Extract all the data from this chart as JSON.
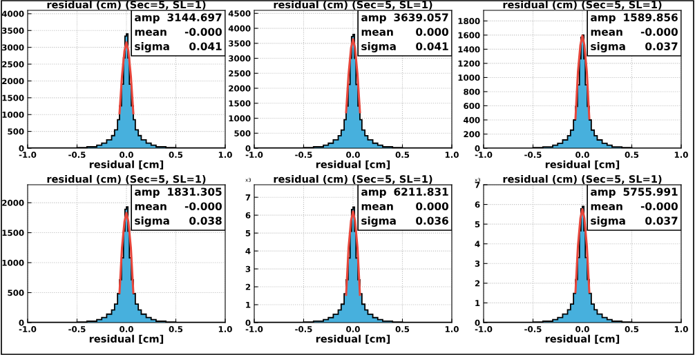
{
  "chart_data": [
    {
      "type": "histogram",
      "title": "residual (cm) (Sec=5, SL=1)",
      "xlabel": "residual [cm]",
      "bins": [
        -1,
        -0.5,
        -0.4,
        -0.3,
        -0.25,
        -0.2,
        -0.15,
        -0.12,
        -0.09,
        -0.07,
        -0.05,
        -0.03,
        -0.015,
        0,
        0.015,
        0.03,
        0.05,
        0.07,
        0.09,
        0.12,
        0.15,
        0.2,
        0.25,
        0.3,
        0.4,
        0.5,
        1
      ],
      "series": [
        {
          "type": "histogram",
          "color": "#47b0dd",
          "values": [
            5,
            17,
            41,
            88,
            150,
            248,
            374,
            544,
            850,
            1258,
            1904,
            2686,
            3332,
            3400,
            2686,
            1904,
            1258,
            850,
            544,
            374,
            248,
            150,
            88,
            41,
            17,
            5
          ]
        },
        {
          "type": "line",
          "color": "#e8473c",
          "x": [
            -0.07,
            -0.045,
            -0.02,
            0,
            0.02,
            0.045,
            0.07
          ],
          "values": [
            1040,
            2140,
            2890,
            3145,
            2890,
            2140,
            1040
          ]
        }
      ],
      "xlim": [
        -1,
        1
      ],
      "xticks": [
        {
          "value": -1,
          "label": "-1.0"
        },
        {
          "value": -0.5,
          "label": "-0.5"
        },
        {
          "value": 0,
          "label": "0.0"
        },
        {
          "value": 0.5,
          "label": "0.5"
        },
        {
          "value": 1,
          "label": "1.0"
        }
      ],
      "ylim": [
        0,
        4100
      ],
      "yticks": [
        0,
        500,
        1000,
        1500,
        2000,
        2500,
        3000,
        3500,
        4000
      ],
      "grid": true,
      "annotations": [
        "amp",
        "3144.697",
        "mean",
        "-0.000",
        "sigma",
        "0.041"
      ]
    },
    {
      "type": "histogram",
      "title": "residual (cm) (Sec=5, SL=1)",
      "xlabel": "residual [cm]",
      "bins": [
        -1,
        -0.5,
        -0.4,
        -0.3,
        -0.25,
        -0.2,
        -0.15,
        -0.12,
        -0.09,
        -0.07,
        -0.05,
        -0.03,
        -0.015,
        0,
        0.015,
        0.03,
        0.05,
        0.07,
        0.09,
        0.12,
        0.15,
        0.2,
        0.25,
        0.3,
        0.4,
        0.5,
        1
      ],
      "series": [
        {
          "type": "histogram",
          "color": "#47b0dd",
          "values": [
            6,
            19,
            46,
            99,
            167,
            277,
            418,
            608,
            950,
            1406,
            2128,
            3002,
            3724,
            3800,
            3002,
            2128,
            1406,
            950,
            608,
            418,
            277,
            167,
            99,
            46,
            19,
            6
          ]
        },
        {
          "type": "line",
          "color": "#e8473c",
          "x": [
            -0.07,
            -0.045,
            -0.02,
            0,
            0.02,
            0.045,
            0.07
          ],
          "values": [
            1200,
            2470,
            3350,
            3639,
            3350,
            2470,
            1200
          ]
        }
      ],
      "xlim": [
        -1,
        1
      ],
      "xticks": [
        {
          "value": -1,
          "label": "-1.0"
        },
        {
          "value": -0.5,
          "label": "-0.5"
        },
        {
          "value": 0,
          "label": "0.0"
        },
        {
          "value": 0.5,
          "label": "0.5"
        },
        {
          "value": 1,
          "label": "1.0"
        }
      ],
      "ylim": [
        0,
        4600
      ],
      "yticks": [
        0,
        500,
        1000,
        1500,
        2000,
        2500,
        3000,
        3500,
        4000,
        4500
      ],
      "grid": true,
      "annotations": [
        "amp",
        "3639.057",
        "mean",
        "0.000",
        "sigma",
        "0.041"
      ]
    },
    {
      "type": "histogram",
      "title": "residual (cm) (Sec=5, SL=1)",
      "xlabel": "residual [cm]",
      "bins": [
        -1,
        -0.5,
        -0.4,
        -0.3,
        -0.25,
        -0.2,
        -0.15,
        -0.12,
        -0.09,
        -0.07,
        -0.05,
        -0.03,
        -0.015,
        0,
        0.015,
        0.03,
        0.05,
        0.07,
        0.09,
        0.12,
        0.15,
        0.2,
        0.25,
        0.3,
        0.4,
        0.5,
        1
      ],
      "series": [
        {
          "type": "histogram",
          "color": "#47b0dd",
          "values": [
            2,
            8,
            19,
            42,
            70,
            117,
            176,
            256,
            400,
            592,
            896,
            1264,
            1568,
            1600,
            1264,
            896,
            592,
            400,
            256,
            176,
            117,
            70,
            42,
            19,
            8,
            2
          ]
        },
        {
          "type": "line",
          "color": "#e8473c",
          "x": [
            -0.07,
            -0.045,
            -0.02,
            0,
            0.02,
            0.045,
            0.07
          ],
          "values": [
            420,
            1080,
            1460,
            1590,
            1460,
            1080,
            420
          ]
        }
      ],
      "xlim": [
        -1,
        1
      ],
      "xticks": [
        {
          "value": -1,
          "label": "-1.0"
        },
        {
          "value": -0.5,
          "label": "-0.5"
        },
        {
          "value": 0,
          "label": "0.0"
        },
        {
          "value": 0.5,
          "label": "0.5"
        },
        {
          "value": 1,
          "label": "1.0"
        }
      ],
      "ylim": [
        0,
        1950
      ],
      "yticks": [
        0,
        200,
        400,
        600,
        800,
        1000,
        1200,
        1400,
        1600,
        1800
      ],
      "grid": true,
      "annotations": [
        "amp",
        "1589.856",
        "mean",
        "-0.000",
        "sigma",
        "0.037"
      ]
    },
    {
      "type": "histogram",
      "title": "residual (cm) (Sec=5, SL=1)",
      "xlabel": "residual [cm]",
      "bins": [
        -1,
        -0.5,
        -0.4,
        -0.3,
        -0.25,
        -0.2,
        -0.15,
        -0.12,
        -0.09,
        -0.07,
        -0.05,
        -0.03,
        -0.015,
        0,
        0.015,
        0.03,
        0.05,
        0.07,
        0.09,
        0.12,
        0.15,
        0.2,
        0.25,
        0.3,
        0.4,
        0.5,
        1
      ],
      "series": [
        {
          "type": "histogram",
          "color": "#47b0dd",
          "values": [
            3,
            10,
            23,
            50,
            85,
            141,
            212,
            309,
            483,
            714,
            1081,
            1525,
            1891,
            1930,
            1525,
            1081,
            714,
            483,
            309,
            212,
            141,
            85,
            50,
            23,
            10,
            3
          ]
        },
        {
          "type": "line",
          "color": "#e8473c",
          "x": [
            -0.07,
            -0.045,
            -0.02,
            0,
            0.02,
            0.045,
            0.07
          ],
          "values": [
            500,
            1250,
            1680,
            1831,
            1680,
            1250,
            500
          ]
        }
      ],
      "xlim": [
        -1,
        1
      ],
      "xticks": [
        {
          "value": -1,
          "label": "-1.0"
        },
        {
          "value": -0.5,
          "label": "-0.5"
        },
        {
          "value": 0,
          "label": "0.0"
        },
        {
          "value": 0.5,
          "label": "0.5"
        },
        {
          "value": 1,
          "label": "1.0"
        }
      ],
      "ylim": [
        0,
        2300
      ],
      "yticks": [
        0,
        500,
        1000,
        1500,
        2000
      ],
      "grid": true,
      "annotations": [
        "amp",
        "1831.305",
        "mean",
        "-0.000",
        "sigma",
        "0.038"
      ]
    },
    {
      "type": "histogram",
      "title": "residual (cm) (Sec=5, SL=1)",
      "xlabel": "residual [cm]",
      "ylabel": "x3",
      "bins": [
        -1,
        -0.5,
        -0.4,
        -0.3,
        -0.25,
        -0.2,
        -0.15,
        -0.12,
        -0.09,
        -0.07,
        -0.05,
        -0.03,
        -0.015,
        0,
        0.015,
        0.03,
        0.05,
        0.07,
        0.09,
        0.12,
        0.15,
        0.2,
        0.25,
        0.3,
        0.4,
        0.5,
        1
      ],
      "series": [
        {
          "type": "histogram",
          "color": "#47b0dd",
          "values": [
            0.01,
            0.03,
            0.08,
            0.17,
            0.28,
            0.47,
            0.71,
            1.03,
            1.61,
            2.39,
            3.61,
            5.1,
            6.32,
            6.45,
            5.1,
            3.61,
            2.39,
            1.61,
            1.03,
            0.71,
            0.47,
            0.28,
            0.17,
            0.08,
            0.03,
            0.01
          ]
        },
        {
          "type": "line",
          "color": "#e8473c",
          "x": [
            -0.07,
            -0.045,
            -0.02,
            0,
            0.02,
            0.045,
            0.07
          ],
          "values": [
            1.55,
            4.2,
            5.7,
            6.21,
            5.7,
            4.2,
            1.55
          ]
        }
      ],
      "xlim": [
        -1,
        1
      ],
      "xticks": [
        {
          "value": -1,
          "label": "-1.0"
        },
        {
          "value": -0.5,
          "label": "-0.5"
        },
        {
          "value": 0,
          "label": "0.0"
        },
        {
          "value": 0.5,
          "label": "0.5"
        },
        {
          "value": 1,
          "label": "1.0"
        }
      ],
      "ylim": [
        0,
        7.7
      ],
      "yticks": [
        0,
        1,
        2,
        3,
        4,
        5,
        6,
        7
      ],
      "grid": true,
      "annotations": [
        "amp",
        "6211.831",
        "mean",
        "0.000",
        "sigma",
        "0.036"
      ]
    },
    {
      "type": "histogram",
      "title": "residual (cm) (Sec=5, SL=1)",
      "xlabel": "residual [cm]",
      "ylabel": "x3",
      "bins": [
        -1,
        -0.5,
        -0.4,
        -0.3,
        -0.25,
        -0.2,
        -0.15,
        -0.12,
        -0.09,
        -0.07,
        -0.05,
        -0.03,
        -0.015,
        0,
        0.015,
        0.03,
        0.05,
        0.07,
        0.09,
        0.12,
        0.15,
        0.2,
        0.25,
        0.3,
        0.4,
        0.5,
        1
      ],
      "series": [
        {
          "type": "histogram",
          "color": "#47b0dd",
          "values": [
            0.01,
            0.03,
            0.07,
            0.15,
            0.26,
            0.43,
            0.65,
            0.94,
            1.48,
            2.18,
            3.3,
            4.66,
            5.78,
            5.9,
            4.66,
            3.3,
            2.18,
            1.48,
            0.94,
            0.65,
            0.43,
            0.26,
            0.15,
            0.07,
            0.03,
            0.01
          ]
        },
        {
          "type": "line",
          "color": "#e8473c",
          "x": [
            -0.07,
            -0.045,
            -0.02,
            0,
            0.02,
            0.045,
            0.07
          ],
          "values": [
            1.55,
            3.9,
            5.3,
            5.76,
            5.3,
            3.9,
            1.55
          ]
        }
      ],
      "xlim": [
        -1,
        1
      ],
      "xticks": [
        {
          "value": -1,
          "label": "-1.0"
        },
        {
          "value": -0.5,
          "label": "-0.5"
        },
        {
          "value": 0,
          "label": "0.0"
        },
        {
          "value": 0.5,
          "label": "0.5"
        },
        {
          "value": 1,
          "label": "1.0"
        }
      ],
      "ylim": [
        0,
        7
      ],
      "yticks": [
        0,
        1,
        2,
        3,
        4,
        5,
        6,
        7
      ],
      "grid": true,
      "annotations": [
        "amp",
        "5755.991",
        "mean",
        "-0.000",
        "sigma",
        "0.037"
      ]
    }
  ]
}
